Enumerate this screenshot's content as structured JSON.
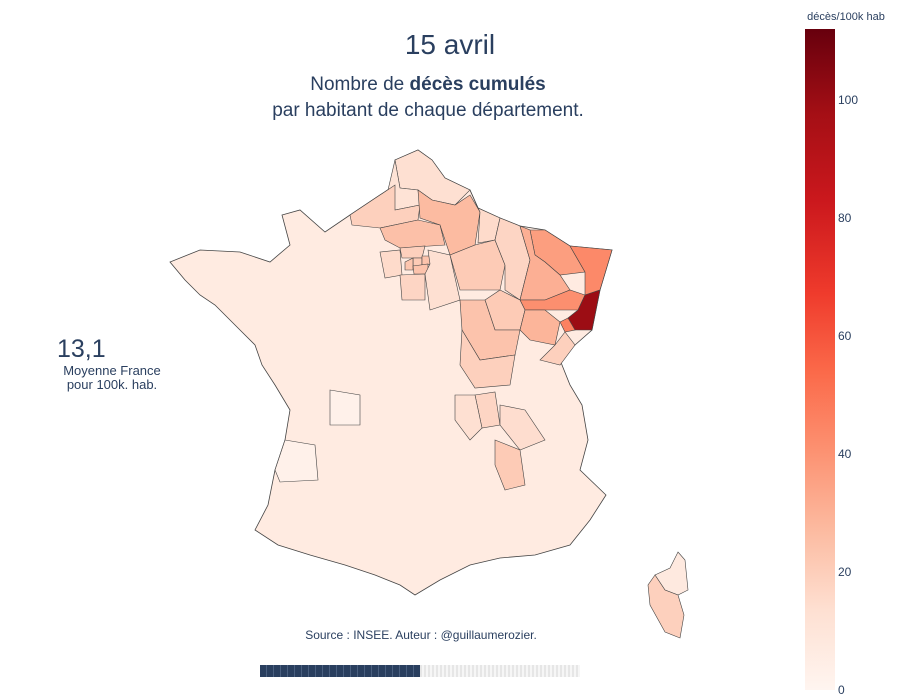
{
  "header": {
    "date": "15 avril",
    "subtitle_pre": "Nombre de ",
    "subtitle_bold": "décès cumulés",
    "subtitle_line2": "par habitant de chaque département."
  },
  "average": {
    "value": "13,1",
    "label": "Moyenne France pour 100k. hab."
  },
  "source": "Source : INSEE. Auteur : @guillaumerozier.",
  "animation": {
    "progress": 0.5
  },
  "colorbar": {
    "title": "décès/100k hab",
    "min": 0,
    "max": 112,
    "ticks": [
      "0",
      "20",
      "40",
      "60",
      "80",
      "100"
    ],
    "colors": [
      "#fff5f0",
      "#fee0d2",
      "#fcbba1",
      "#fc9272",
      "#fb6a4a",
      "#ef3b2c",
      "#cb181d",
      "#a50f15",
      "#67000d"
    ]
  },
  "map_data": {
    "region": "France métropolitaine",
    "metric": "décès/100k hab",
    "levels": {
      "Haut-Rhin": 100,
      "Bas-Rhin": 45,
      "Moselle": 38,
      "Vosges": 43,
      "Territoire de Belfort": 48,
      "Meurthe-et-Moselle": 32,
      "Aisne": 28,
      "Oise": 26,
      "Marne": 22,
      "Meuse": 18,
      "Ardennes": 16,
      "Haute-Marne": 22,
      "Haute-Saône": 30,
      "Côte-d'Or": 25,
      "Doubs": 20,
      "Saône-et-Loire": 20,
      "Val-de-Marne": 25,
      "Seine-Saint-Denis": 25,
      "Paris": 22,
      "Hauts-de-Seine": 24,
      "Essonne": 18,
      "Val-d'Oise": 20,
      "Yvelines": 16,
      "Seine-et-Marne": 14,
      "Somme": 20,
      "Nord": 14,
      "Pas-de-Calais": 12,
      "Rhône": 18,
      "Loire": 14,
      "Drôme": 22,
      "Isère": 15,
      "Corse-du-Sud": 20,
      "Haute-Corse": 8,
      "Haute-Vienne": 3,
      "Gironde": 3
    }
  }
}
